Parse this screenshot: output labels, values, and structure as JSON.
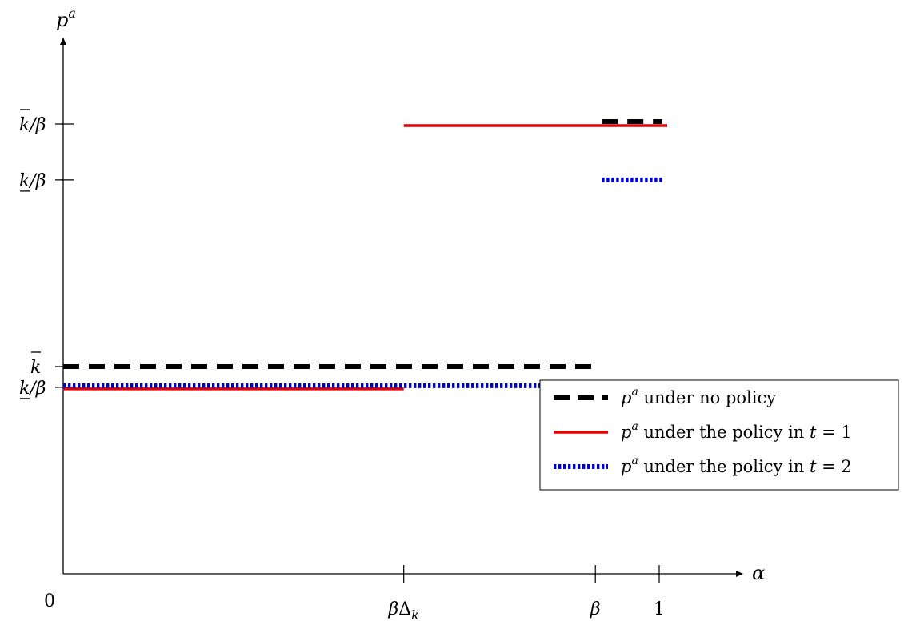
{
  "chart_data": {
    "type": "line",
    "title": "",
    "xlabel": "α",
    "ylabel": "p^a",
    "origin_label": "0",
    "x_ticks": [
      {
        "value": 0.5714,
        "label": "βΔ_k"
      },
      {
        "value": 0.8929,
        "label": "β"
      },
      {
        "value": 1.0,
        "label": "1"
      }
    ],
    "y_ticks": [
      {
        "value": 0.9,
        "label": "k_/β",
        "base": "k",
        "bar": "under",
        "suffix": "/β",
        "id": "k-lower"
      },
      {
        "value": 1.0,
        "label": "k̄",
        "base": "k",
        "bar": "over",
        "suffix": "",
        "id": "k-upper"
      },
      {
        "value": 1.9,
        "label": "k_/β",
        "base": "k",
        "bar": "under",
        "suffix": "/β",
        "id": "k-lower-over-beta"
      },
      {
        "value": 2.17,
        "label": "k̄/β",
        "base": "k",
        "bar": "over",
        "suffix": "/β",
        "id": "k-upper-over-beta"
      }
    ],
    "xlim": [
      0,
      1.08
    ],
    "ylim": [
      0,
      2.55
    ],
    "legend_position": "right",
    "series": [
      {
        "name": "p^a under no policy",
        "legend_rest": " under no policy",
        "color": "#000000",
        "style": "dashed",
        "segments": [
          {
            "x": [
              0,
              0.8929
            ],
            "y": [
              1.0,
              1.0
            ]
          },
          {
            "x": [
              0.8929,
              1.0
            ],
            "y": [
              2.17,
              2.17
            ]
          }
        ]
      },
      {
        "name": "p^a under the policy in t = 1",
        "legend_rest": " under the policy in ",
        "legend_eq": "t = 1",
        "color": "#e60000",
        "style": "solid",
        "segments": [
          {
            "x": [
              0,
              0.5714
            ],
            "y": [
              0.9,
              0.9
            ]
          },
          {
            "x": [
              0.5714,
              1.0
            ],
            "y": [
              2.17,
              2.17
            ]
          }
        ]
      },
      {
        "name": "p^a under the policy in t = 2",
        "legend_rest": " under the policy in ",
        "legend_eq": "t = 2",
        "color": "#0000cc",
        "style": "dotted",
        "segments": [
          {
            "x": [
              0,
              0.8929
            ],
            "y": [
              0.9,
              0.9
            ]
          },
          {
            "x": [
              0.8929,
              1.0
            ],
            "y": [
              1.9,
              1.9
            ]
          }
        ]
      }
    ]
  }
}
